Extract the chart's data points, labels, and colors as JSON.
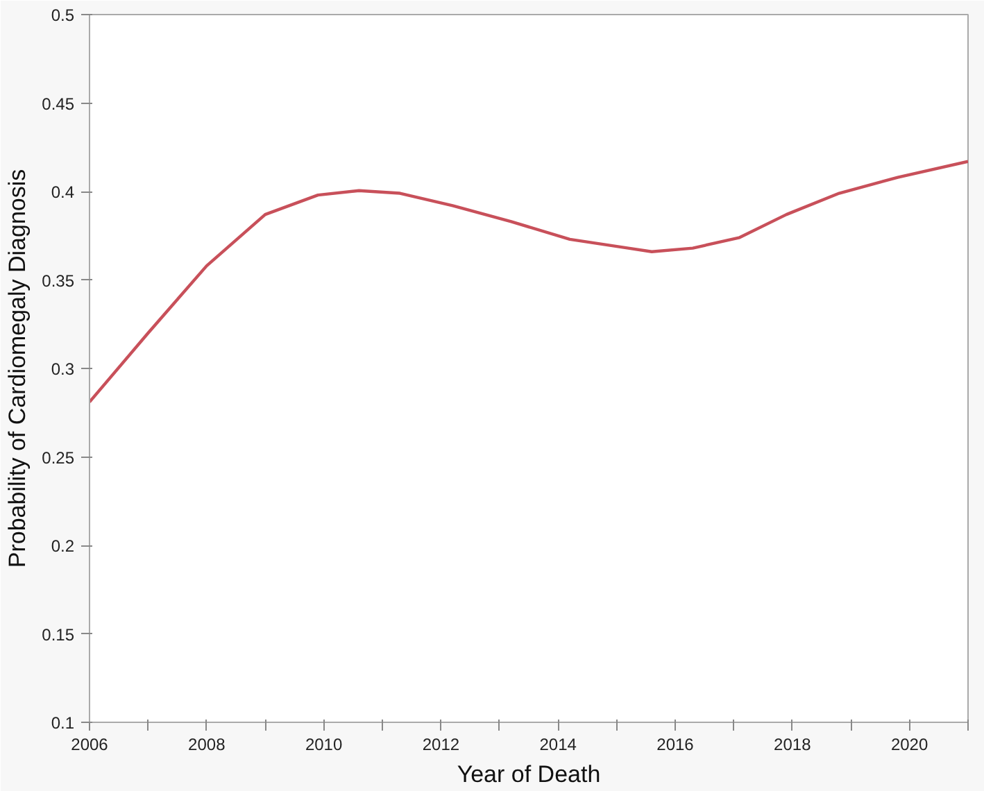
{
  "chart_data": {
    "type": "line",
    "xlabel": "Year of Death",
    "ylabel": "Probability of Cardiomegaly Diagnosis",
    "xlim": [
      2006,
      2021
    ],
    "ylim": [
      0.1,
      0.5
    ],
    "xticks": [
      2006,
      {
        "value": 2007,
        "label": null
      },
      2008,
      {
        "value": 2009,
        "label": null
      },
      2010,
      {
        "value": 2011,
        "label": null
      },
      2012,
      {
        "value": 2013,
        "label": null
      },
      2014,
      {
        "value": 2015,
        "label": null
      },
      2016,
      {
        "value": 2017,
        "label": null
      },
      2018,
      {
        "value": 2019,
        "label": null
      },
      2020,
      {
        "value": 2021,
        "label": null
      }
    ],
    "yticks": [
      0.1,
      0.15,
      0.2,
      0.25,
      0.3,
      0.35,
      0.4,
      0.45,
      0.5
    ],
    "grid": false,
    "marker": "none",
    "line_style": "solid",
    "series": [
      {
        "color": "#c8505a",
        "x": [
          2006,
          2007,
          2008,
          2009,
          2009.9,
          2010.6,
          2011.3,
          2012.2,
          2013.2,
          2014.2,
          2015.2,
          2015.6,
          2016.3,
          2017.1,
          2017.9,
          2018.8,
          2019.8,
          2021
        ],
        "values": [
          0.281,
          0.32,
          0.358,
          0.387,
          0.398,
          0.4005,
          0.399,
          0.392,
          0.383,
          0.373,
          0.368,
          0.366,
          0.368,
          0.374,
          0.387,
          0.399,
          0.408,
          0.417
        ]
      }
    ]
  }
}
